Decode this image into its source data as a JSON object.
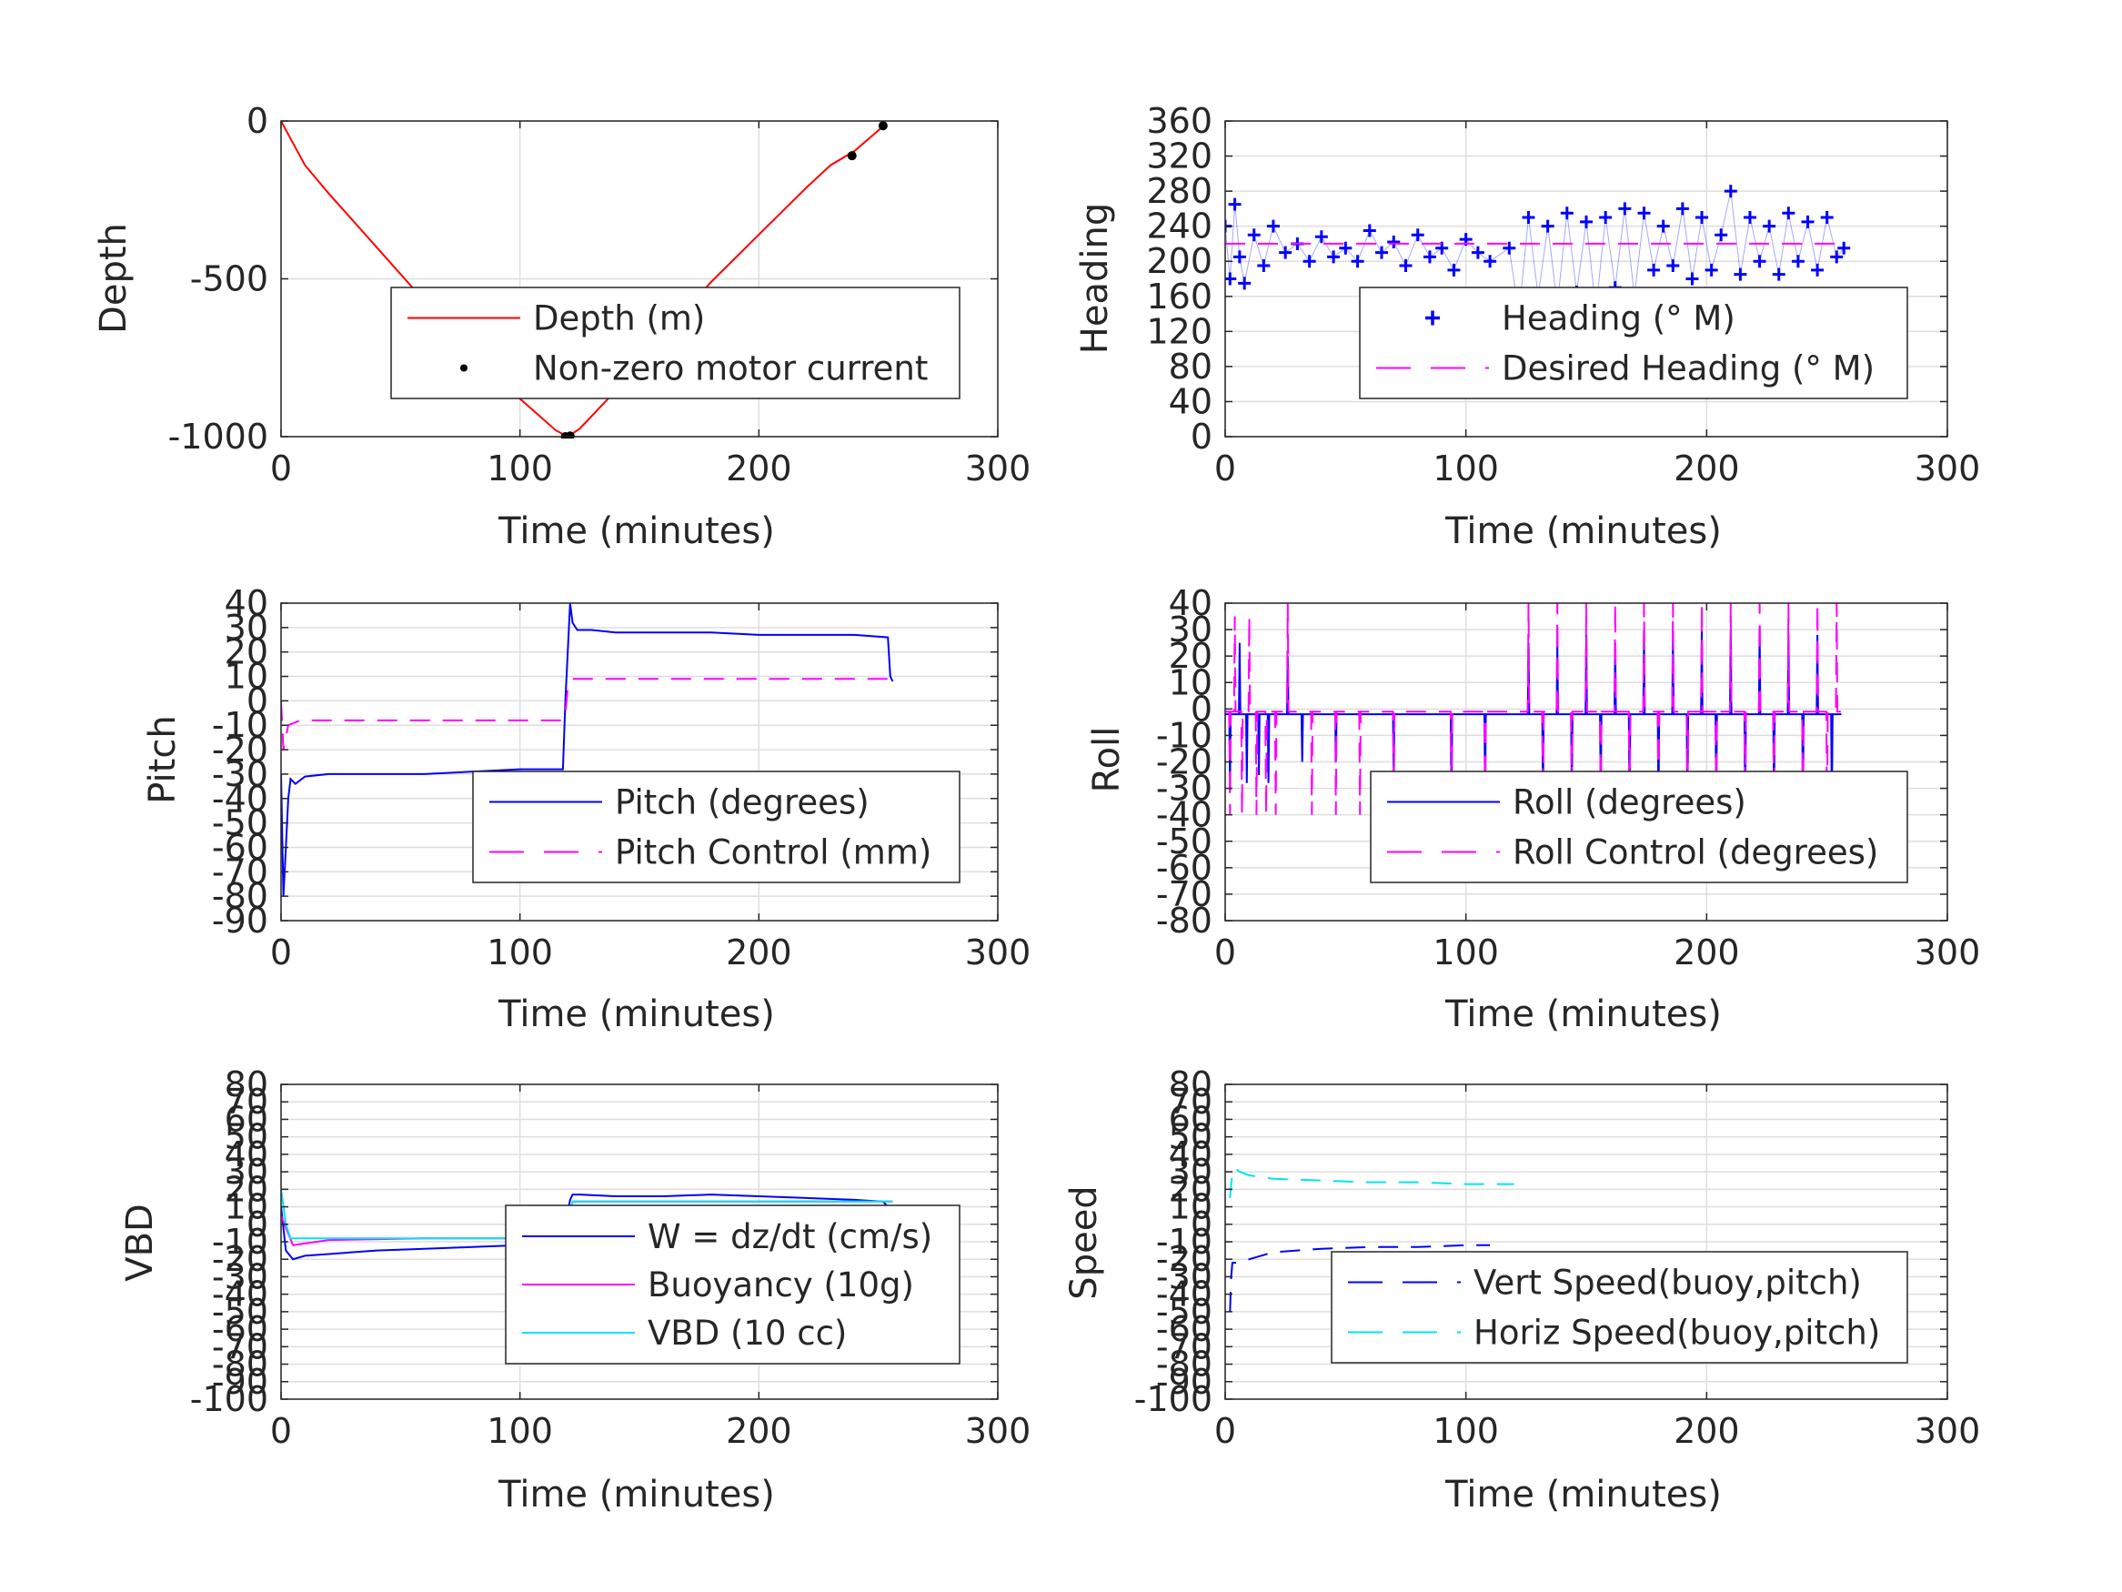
{
  "chart_data": [
    {
      "id": "depth",
      "type": "line",
      "xlabel": "Time (minutes)",
      "ylabel": "Depth",
      "xlim": [
        0,
        300
      ],
      "ylim": [
        -1000,
        0
      ],
      "xticks": [
        0,
        100,
        200,
        300
      ],
      "xtick_labels": [
        "0",
        "100",
        "200",
        "300"
      ],
      "yticks": [
        -1000,
        -500,
        0
      ],
      "ytick_labels": [
        "-1000",
        "-500",
        "0"
      ],
      "grid": true,
      "legend_position": "lower-right",
      "series": [
        {
          "name": "Depth (m)",
          "kind": "line",
          "color": "#ff0000",
          "dash": "solid",
          "x": [
            0,
            5,
            10,
            20,
            40,
            60,
            80,
            100,
            115,
            120,
            125,
            140,
            160,
            180,
            200,
            220,
            230,
            240,
            250,
            253
          ],
          "y": [
            0,
            -70,
            -140,
            -230,
            -400,
            -570,
            -730,
            -880,
            -980,
            -1000,
            -975,
            -855,
            -680,
            -510,
            -360,
            -210,
            -140,
            -95,
            -30,
            -10
          ]
        },
        {
          "name": "Non-zero motor current",
          "kind": "dots",
          "color": "#000000",
          "x": [
            119,
            121,
            239,
            252
          ],
          "y": [
            -1000,
            -998,
            -110,
            -15
          ]
        }
      ]
    },
    {
      "id": "heading",
      "type": "scatter",
      "xlabel": "Time (minutes)",
      "ylabel": "Heading",
      "xlim": [
        0,
        300
      ],
      "ylim": [
        0,
        360
      ],
      "xticks": [
        0,
        100,
        200,
        300
      ],
      "xtick_labels": [
        "0",
        "100",
        "200",
        "300"
      ],
      "yticks": [
        0,
        40,
        80,
        120,
        160,
        200,
        240,
        280,
        320,
        360
      ],
      "ytick_labels": [
        "0",
        "40",
        "80",
        "120",
        "160",
        "200",
        "240",
        "280",
        "320",
        "360"
      ],
      "grid": true,
      "legend_position": "lower-right",
      "series": [
        {
          "name": "Heading (° M)",
          "kind": "plus",
          "color": "#0000ff",
          "x": [
            0,
            2,
            4,
            6,
            8,
            12,
            16,
            20,
            25,
            30,
            35,
            40,
            45,
            50,
            55,
            60,
            65,
            70,
            75,
            80,
            85,
            90,
            95,
            100,
            105,
            110,
            118,
            122,
            126,
            130,
            134,
            138,
            142,
            146,
            150,
            154,
            158,
            162,
            166,
            170,
            174,
            178,
            182,
            186,
            190,
            194,
            198,
            202,
            206,
            210,
            214,
            218,
            222,
            226,
            230,
            234,
            238,
            242,
            246,
            250,
            254,
            257
          ],
          "y": [
            240,
            180,
            265,
            205,
            175,
            230,
            195,
            240,
            210,
            220,
            200,
            228,
            205,
            215,
            200,
            235,
            210,
            222,
            195,
            230,
            205,
            215,
            190,
            225,
            210,
            200,
            215,
            140,
            250,
            160,
            240,
            150,
            255,
            165,
            245,
            145,
            250,
            170,
            260,
            160,
            255,
            190,
            240,
            195,
            260,
            180,
            250,
            190,
            230,
            280,
            185,
            250,
            200,
            240,
            185,
            255,
            200,
            245,
            190,
            250,
            205,
            215
          ]
        },
        {
          "name": "Desired Heading (° M)",
          "kind": "line",
          "color": "#ff00ff",
          "dash": "dashed",
          "x": [
            0,
            257
          ],
          "y": [
            220,
            220
          ]
        }
      ]
    },
    {
      "id": "pitch",
      "type": "line",
      "xlabel": "Time (minutes)",
      "ylabel": "Pitch",
      "xlim": [
        0,
        300
      ],
      "ylim": [
        -90,
        40
      ],
      "xticks": [
        0,
        100,
        200,
        300
      ],
      "xtick_labels": [
        "0",
        "100",
        "200",
        "300"
      ],
      "yticks": [
        -90,
        -80,
        -70,
        -60,
        -50,
        -40,
        -30,
        -20,
        -10,
        0,
        10,
        20,
        30,
        40
      ],
      "ytick_labels": [
        "-90",
        "-80",
        "-70",
        "-60",
        "-50",
        "-40",
        "-30",
        "-20",
        "-10",
        "0",
        "10",
        "20",
        "30",
        "40"
      ],
      "grid": true,
      "legend_position": "lower-right",
      "series": [
        {
          "name": "Pitch (degrees)",
          "kind": "line",
          "color": "#0000ff",
          "dash": "solid",
          "x": [
            0,
            1,
            2,
            3,
            4,
            6,
            10,
            20,
            40,
            60,
            80,
            100,
            110,
            118,
            119,
            120,
            121,
            122,
            124,
            130,
            140,
            160,
            180,
            200,
            220,
            240,
            254,
            255,
            256
          ],
          "y": [
            -30,
            -80,
            -60,
            -40,
            -32,
            -34,
            -31,
            -30,
            -30,
            -30,
            -29,
            -28,
            -28,
            -28,
            0,
            20,
            40,
            32,
            29,
            29,
            28,
            28,
            28,
            27,
            27,
            27,
            26,
            10,
            8
          ]
        },
        {
          "name": "Pitch Control (mm)",
          "kind": "line",
          "color": "#ff00ff",
          "dash": "dashed",
          "x": [
            0,
            1,
            3,
            8,
            20,
            50,
            80,
            110,
            118,
            119,
            120,
            122,
            150,
            200,
            230,
            256
          ],
          "y": [
            0,
            -20,
            -10,
            -8,
            -8,
            -8,
            -8,
            -8,
            -8,
            -5,
            5,
            9,
            9,
            9,
            9,
            9
          ]
        }
      ]
    },
    {
      "id": "roll",
      "type": "line",
      "xlabel": "Time (minutes)",
      "ylabel": "Roll",
      "xlim": [
        0,
        300
      ],
      "ylim": [
        -80,
        40
      ],
      "xticks": [
        0,
        100,
        200,
        300
      ],
      "xtick_labels": [
        "0",
        "100",
        "200",
        "300"
      ],
      "yticks": [
        -80,
        -70,
        -60,
        -50,
        -40,
        -30,
        -20,
        -10,
        0,
        10,
        20,
        30,
        40
      ],
      "ytick_labels": [
        "-80",
        "-70",
        "-60",
        "-50",
        "-40",
        "-30",
        "-20",
        "-10",
        "0",
        "10",
        "20",
        "30",
        "40"
      ],
      "grid": true,
      "legend_position": "lower-right",
      "series": [
        {
          "name": "Roll (degrees)",
          "kind": "line",
          "color": "#0000ff",
          "dash": "solid",
          "base": -2,
          "spikes": [
            [
              2,
              -30
            ],
            [
              6,
              25
            ],
            [
              9,
              -28
            ],
            [
              14,
              -25
            ],
            [
              18,
              -28
            ],
            [
              26,
              20
            ],
            [
              32,
              -20
            ],
            [
              46,
              -20
            ],
            [
              70,
              -25
            ],
            [
              94,
              -40
            ],
            [
              108,
              -35
            ],
            [
              126,
              25
            ],
            [
              132,
              -35
            ],
            [
              138,
              25
            ],
            [
              144,
              -35
            ],
            [
              150,
              28
            ],
            [
              156,
              -35
            ],
            [
              162,
              25
            ],
            [
              168,
              -35
            ],
            [
              174,
              28
            ],
            [
              180,
              -38
            ],
            [
              186,
              28
            ],
            [
              192,
              -38
            ],
            [
              198,
              30
            ],
            [
              204,
              -38
            ],
            [
              210,
              30
            ],
            [
              216,
              -38
            ],
            [
              222,
              30
            ],
            [
              228,
              -38
            ],
            [
              234,
              28
            ],
            [
              240,
              -38
            ],
            [
              246,
              28
            ],
            [
              252,
              -38
            ]
          ],
          "x": [],
          "y": []
        },
        {
          "name": "Roll Control (degrees)",
          "kind": "line",
          "color": "#ff00ff",
          "dash": "dashed",
          "base": -1,
          "spikes": [
            [
              2,
              -40
            ],
            [
              4,
              35
            ],
            [
              7,
              -40
            ],
            [
              10,
              35
            ],
            [
              13,
              -40
            ],
            [
              17,
              -40
            ],
            [
              21,
              -40
            ],
            [
              26,
              40
            ],
            [
              36,
              -40
            ],
            [
              46,
              -40
            ],
            [
              56,
              -40
            ],
            [
              70,
              -40
            ],
            [
              94,
              -40
            ],
            [
              108,
              -40
            ],
            [
              126,
              40
            ],
            [
              132,
              -40
            ],
            [
              138,
              40
            ],
            [
              144,
              -40
            ],
            [
              150,
              40
            ],
            [
              156,
              -40
            ],
            [
              162,
              40
            ],
            [
              168,
              -40
            ],
            [
              174,
              40
            ],
            [
              180,
              -40
            ],
            [
              186,
              40
            ],
            [
              192,
              -40
            ],
            [
              198,
              40
            ],
            [
              204,
              -40
            ],
            [
              210,
              40
            ],
            [
              216,
              -40
            ],
            [
              222,
              40
            ],
            [
              228,
              -40
            ],
            [
              234,
              40
            ],
            [
              240,
              -40
            ],
            [
              246,
              40
            ],
            [
              250,
              -40
            ],
            [
              254,
              40
            ]
          ],
          "x": [],
          "y": []
        }
      ]
    },
    {
      "id": "vbd",
      "type": "line",
      "xlabel": "Time (minutes)",
      "ylabel": "VBD",
      "xlim": [
        0,
        300
      ],
      "ylim": [
        -100,
        80
      ],
      "xticks": [
        0,
        100,
        200,
        300
      ],
      "xtick_labels": [
        "0",
        "100",
        "200",
        "300"
      ],
      "yticks": [
        -100,
        -90,
        -80,
        -70,
        -60,
        -50,
        -40,
        -30,
        -20,
        -10,
        0,
        10,
        20,
        30,
        40,
        50,
        60,
        70,
        80
      ],
      "ytick_labels": [
        "-100",
        "-90",
        "-80",
        "-70",
        "-60",
        "-50",
        "-40",
        "-30",
        "-20",
        "-10",
        "0",
        "10",
        "20",
        "30",
        "40",
        "50",
        "60",
        "70",
        "80"
      ],
      "grid": true,
      "legend_position": "lower-right",
      "series": [
        {
          "name": "W = dz/dt (cm/s)",
          "kind": "line",
          "color": "#0000ff",
          "dash": "solid",
          "x": [
            0,
            2,
            5,
            10,
            20,
            40,
            60,
            80,
            100,
            115,
            118,
            119,
            121,
            122,
            125,
            140,
            160,
            180,
            200,
            220,
            240,
            252,
            254,
            256
          ],
          "y": [
            10,
            -15,
            -20,
            -18,
            -17,
            -15,
            -14,
            -13,
            -12,
            -12,
            -12,
            0,
            14,
            17,
            17,
            16,
            16,
            17,
            16,
            15,
            14,
            13,
            10,
            8
          ]
        },
        {
          "name": "Buoyancy (10g)",
          "kind": "line",
          "color": "#ff00ff",
          "dash": "solid",
          "x": [
            0,
            5,
            20,
            60,
            118,
            120,
            122,
            256
          ],
          "y": [
            5,
            -12,
            -9,
            -8,
            -8,
            0,
            13,
            13
          ]
        },
        {
          "name": "VBD (10 cc)",
          "kind": "line",
          "color": "#00e5ee",
          "dash": "solid",
          "x": [
            0,
            2,
            4,
            60,
            118,
            120,
            122,
            256
          ],
          "y": [
            20,
            0,
            -8,
            -8,
            -8,
            0,
            13,
            13
          ]
        }
      ]
    },
    {
      "id": "speed",
      "type": "line",
      "xlabel": "Time (minutes)",
      "ylabel": "Speed",
      "xlim": [
        0,
        300
      ],
      "ylim": [
        -100,
        80
      ],
      "xticks": [
        0,
        100,
        200,
        300
      ],
      "xtick_labels": [
        "0",
        "100",
        "200",
        "300"
      ],
      "yticks": [
        -100,
        -90,
        -80,
        -70,
        -60,
        -50,
        -40,
        -30,
        -20,
        -10,
        0,
        10,
        20,
        30,
        40,
        50,
        60,
        70,
        80
      ],
      "ytick_labels": [
        "-100",
        "-90",
        "-80",
        "-70",
        "-60",
        "-50",
        "-40",
        "-30",
        "-20",
        "-10",
        "0",
        "10",
        "20",
        "30",
        "40",
        "50",
        "60",
        "70",
        "80"
      ],
      "grid": true,
      "legend_position": "lower-right",
      "series": [
        {
          "name": "Vert Speed(buoy,pitch)",
          "kind": "line",
          "color": "#0000ff",
          "dash": "dashed",
          "x": [
            2,
            2.5,
            3,
            5,
            10,
            20,
            40,
            60,
            80,
            100,
            110
          ],
          "y": [
            -50,
            -30,
            -22,
            -22,
            -20,
            -16,
            -14,
            -13,
            -13,
            -12,
            -12
          ]
        },
        {
          "name": "Horiz Speed(buoy,pitch)",
          "kind": "line",
          "color": "#00e5ee",
          "dash": "dashed",
          "x": [
            2,
            3,
            4,
            6,
            10,
            20,
            40,
            60,
            80,
            100,
            120
          ],
          "y": [
            15,
            30,
            32,
            30,
            28,
            26,
            25,
            24,
            24,
            23,
            23
          ]
        }
      ]
    }
  ]
}
